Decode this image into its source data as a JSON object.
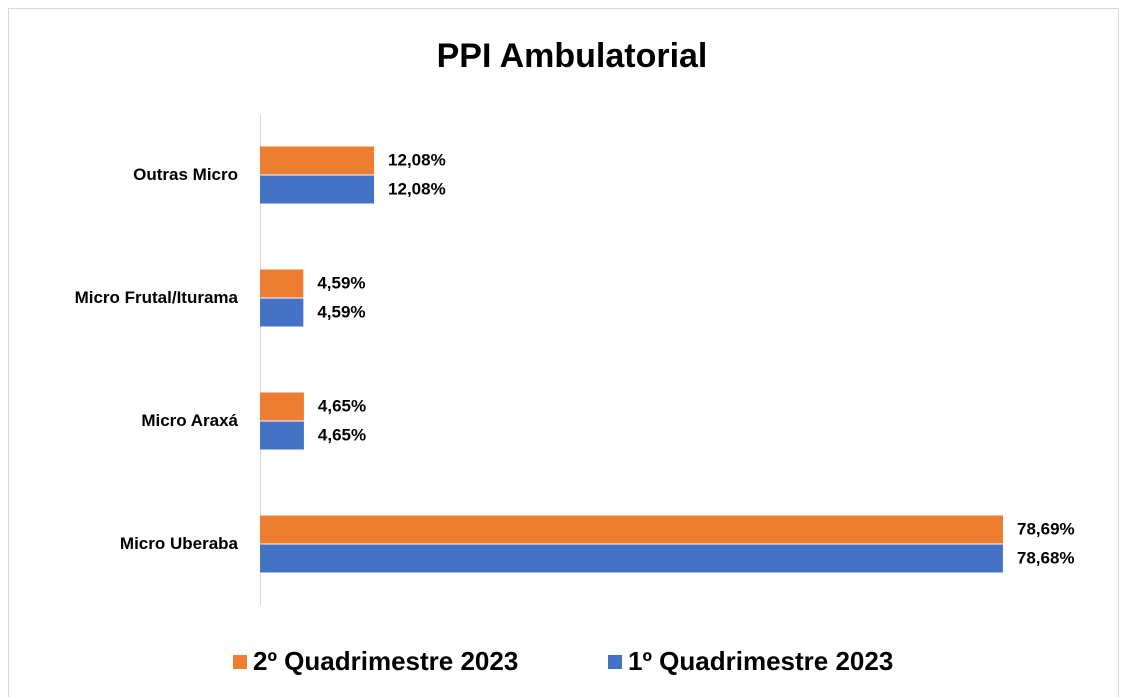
{
  "chart_data": {
    "type": "hbar",
    "title": "PPI Ambulatorial",
    "categories": [
      "Outras Micro",
      "Micro Frutal/Iturama",
      "Micro Araxá",
      "Micro Uberaba"
    ],
    "series": [
      {
        "name": "2º Quadrimestre 2023",
        "color": "#ed7d31",
        "values": [
          12.08,
          4.59,
          4.65,
          78.69
        ],
        "value_labels": [
          "12,08%",
          "4,59%",
          "4,65%",
          "78,69%"
        ]
      },
      {
        "name": "1º Quadrimestre 2023",
        "color": "#4472c4",
        "values": [
          12.08,
          4.59,
          4.65,
          78.68
        ],
        "value_labels": [
          "12,08%",
          "4,59%",
          "4,65%",
          "78,68%"
        ]
      }
    ],
    "legend": "bottom"
  }
}
